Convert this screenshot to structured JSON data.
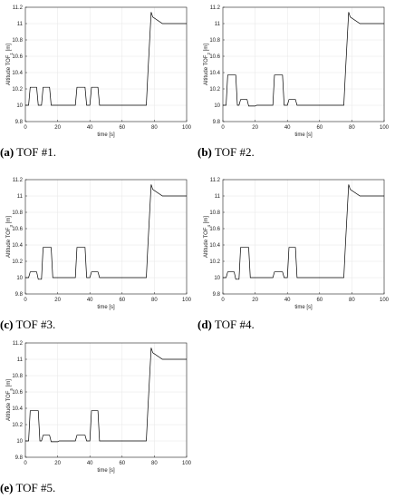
{
  "chart_data": [
    {
      "type": "line",
      "panel_caption": {
        "letter": "(a)",
        "text": " TOF #1."
      },
      "xlabel": "time [s]",
      "ylabel_parts": {
        "main": "Altitude TOF",
        "sub": "1",
        "unit": " [m]"
      },
      "xlim": [
        0,
        100
      ],
      "ylim": [
        9.8,
        11.2
      ],
      "xticks": [
        0,
        20,
        40,
        60,
        80,
        100
      ],
      "yticks": [
        9.8,
        10,
        10.2,
        10.4,
        10.6,
        10.8,
        11,
        11.2
      ],
      "series": [
        {
          "x": [
            0,
            2,
            3,
            7,
            8,
            10,
            11,
            15,
            16,
            20,
            21,
            31,
            32,
            37,
            38,
            40,
            41,
            45,
            46,
            75,
            76,
            78,
            79,
            85,
            100
          ],
          "y": [
            10,
            10,
            10.22,
            10.22,
            10,
            10,
            10.22,
            10.22,
            10,
            10,
            10,
            10,
            10.22,
            10.22,
            10,
            10,
            10.22,
            10.22,
            10,
            10,
            10.4,
            11.14,
            11.08,
            11,
            11
          ]
        }
      ]
    },
    {
      "type": "line",
      "panel_caption": {
        "letter": "(b)",
        "text": " TOF #2."
      },
      "xlabel": "time [s]",
      "ylabel_parts": {
        "main": "Altitude TOF",
        "sub": "2",
        "unit": " [m]"
      },
      "xlim": [
        0,
        100
      ],
      "ylim": [
        9.8,
        11.2
      ],
      "xticks": [
        0,
        20,
        40,
        60,
        80,
        100
      ],
      "yticks": [
        9.8,
        10,
        10.2,
        10.4,
        10.6,
        10.8,
        11,
        11.2
      ],
      "series": [
        {
          "x": [
            0,
            2,
            3,
            8,
            9,
            10,
            11,
            15,
            16,
            20,
            21,
            31,
            32,
            37,
            38,
            40,
            41,
            45,
            46,
            75,
            76,
            78,
            79,
            85,
            100
          ],
          "y": [
            10,
            10,
            10.37,
            10.37,
            10,
            10,
            10.07,
            10.07,
            9.99,
            9.99,
            10,
            10,
            10.37,
            10.37,
            10,
            10,
            10.07,
            10.07,
            10,
            10,
            10.4,
            11.14,
            11.08,
            11,
            11
          ]
        }
      ]
    },
    {
      "type": "line",
      "panel_caption": {
        "letter": "(c)",
        "text": " TOF #3."
      },
      "xlabel": "time [s]",
      "ylabel_parts": {
        "main": "Altitude TOF",
        "sub": "3",
        "unit": " [m]"
      },
      "xlim": [
        0,
        100
      ],
      "ylim": [
        9.8,
        11.2
      ],
      "xticks": [
        0,
        20,
        40,
        60,
        80,
        100
      ],
      "yticks": [
        9.8,
        10,
        10.2,
        10.4,
        10.6,
        10.8,
        11,
        11.2
      ],
      "series": [
        {
          "x": [
            0,
            2,
            3,
            7,
            8,
            10,
            11,
            16,
            17,
            20,
            21,
            31,
            32,
            37,
            38,
            40,
            41,
            45,
            46,
            75,
            76,
            78,
            79,
            85,
            100
          ],
          "y": [
            10,
            10,
            10.07,
            10.07,
            9.98,
            9.98,
            10.37,
            10.37,
            10,
            10,
            10,
            10,
            10.37,
            10.37,
            10,
            10,
            10.07,
            10.07,
            10,
            10,
            10.4,
            11.14,
            11.08,
            11,
            11
          ]
        }
      ]
    },
    {
      "type": "line",
      "panel_caption": {
        "letter": "(d)",
        "text": " TOF #4."
      },
      "xlabel": "time [s]",
      "ylabel_parts": {
        "main": "Altitude TOF",
        "sub": "4",
        "unit": " [m]"
      },
      "xlim": [
        0,
        100
      ],
      "ylim": [
        9.8,
        11.2
      ],
      "xticks": [
        0,
        20,
        40,
        60,
        80,
        100
      ],
      "yticks": [
        9.8,
        10,
        10.2,
        10.4,
        10.6,
        10.8,
        11,
        11.2
      ],
      "series": [
        {
          "x": [
            0,
            2,
            3,
            7,
            8,
            10,
            11,
            16,
            17,
            20,
            21,
            31,
            32,
            37,
            38,
            40,
            41,
            45,
            46,
            75,
            76,
            78,
            79,
            85,
            100
          ],
          "y": [
            10,
            10,
            10.07,
            10.07,
            9.98,
            9.98,
            10.37,
            10.37,
            10,
            10,
            10,
            10,
            10.07,
            10.07,
            10,
            10,
            10.37,
            10.37,
            10,
            10,
            10.4,
            11.14,
            11.08,
            11,
            11
          ]
        }
      ]
    },
    {
      "type": "line",
      "panel_caption": {
        "letter": "(e)",
        "text": " TOF #5."
      },
      "xlabel": "time [s]",
      "ylabel_parts": {
        "main": "Altitude TOF",
        "sub": "5",
        "unit": " [m]"
      },
      "xlim": [
        0,
        100
      ],
      "ylim": [
        9.8,
        11.2
      ],
      "xticks": [
        0,
        20,
        40,
        60,
        80,
        100
      ],
      "yticks": [
        9.8,
        10,
        10.2,
        10.4,
        10.6,
        10.8,
        11,
        11.2
      ],
      "series": [
        {
          "x": [
            0,
            2,
            3,
            8,
            9,
            10,
            11,
            15,
            16,
            20,
            21,
            31,
            32,
            37,
            38,
            40,
            41,
            45,
            46,
            75,
            76,
            78,
            79,
            85,
            100
          ],
          "y": [
            10,
            10,
            10.37,
            10.37,
            10,
            10,
            10.07,
            10.07,
            9.99,
            9.99,
            10,
            10,
            10.07,
            10.07,
            10,
            10,
            10.37,
            10.37,
            10,
            10,
            10.4,
            11.14,
            11.08,
            11,
            11
          ]
        }
      ]
    }
  ]
}
